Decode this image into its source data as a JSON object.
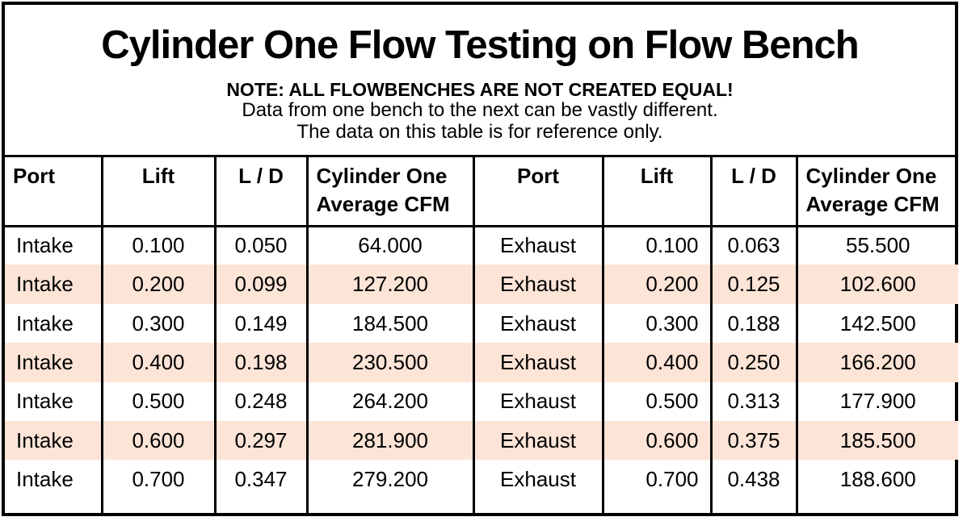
{
  "title": "Cylinder One Flow Testing on Flow Bench",
  "note": {
    "line1": "NOTE: ALL FLOWBENCHES ARE NOT CREATED EQUAL!",
    "line2": "Data from one bench to the next can be vastly different.",
    "line3": "The data on this table is for reference only."
  },
  "table": {
    "headers": [
      "Port",
      "Lift",
      "L / D",
      "Cylinder One Average CFM",
      "Port",
      "Lift",
      "L / D",
      "Cylinder One Average CFM"
    ],
    "rows": [
      [
        "Intake",
        "0.100",
        "0.050",
        "64.000",
        "Exhaust",
        "0.100",
        "0.063",
        "55.500"
      ],
      [
        "Intake",
        "0.200",
        "0.099",
        "127.200",
        "Exhaust",
        "0.200",
        "0.125",
        "102.600"
      ],
      [
        "Intake",
        "0.300",
        "0.149",
        "184.500",
        "Exhaust",
        "0.300",
        "0.188",
        "142.500"
      ],
      [
        "Intake",
        "0.400",
        "0.198",
        "230.500",
        "Exhaust",
        "0.400",
        "0.250",
        "166.200"
      ],
      [
        "Intake",
        "0.500",
        "0.248",
        "264.200",
        "Exhaust",
        "0.500",
        "0.313",
        "177.900"
      ],
      [
        "Intake",
        "0.600",
        "0.297",
        "281.900",
        "Exhaust",
        "0.600",
        "0.375",
        "185.500"
      ],
      [
        "Intake",
        "0.700",
        "0.347",
        "279.200",
        "Exhaust",
        "0.700",
        "0.438",
        "188.600"
      ]
    ]
  },
  "colors": {
    "stripe": "#fce4d6",
    "border": "#000000",
    "text": "#000000",
    "background": "#ffffff"
  },
  "chart_data": {
    "type": "table",
    "title": "Cylinder One Flow Testing on Flow Bench",
    "columns": [
      "Port",
      "Lift",
      "L / D",
      "Cylinder One Average CFM",
      "Port",
      "Lift",
      "L / D",
      "Cylinder One Average CFM"
    ],
    "series": [
      {
        "name": "Intake",
        "lift": [
          0.1,
          0.2,
          0.3,
          0.4,
          0.5,
          0.6,
          0.7
        ],
        "l_over_d": [
          0.05,
          0.099,
          0.149,
          0.198,
          0.248,
          0.297,
          0.347
        ],
        "average_cfm": [
          64.0,
          127.2,
          184.5,
          230.5,
          264.2,
          281.9,
          279.2
        ]
      },
      {
        "name": "Exhaust",
        "lift": [
          0.1,
          0.2,
          0.3,
          0.4,
          0.5,
          0.6,
          0.7
        ],
        "l_over_d": [
          0.063,
          0.125,
          0.188,
          0.25,
          0.313,
          0.375,
          0.438
        ],
        "average_cfm": [
          55.5,
          102.6,
          142.5,
          166.2,
          177.9,
          185.5,
          188.6
        ]
      }
    ],
    "layout_hints": {
      "striped_rows": "even data rows shaded #fce4d6",
      "gridlines": "vertical black column borders only; no horizontal lines between data rows"
    }
  }
}
